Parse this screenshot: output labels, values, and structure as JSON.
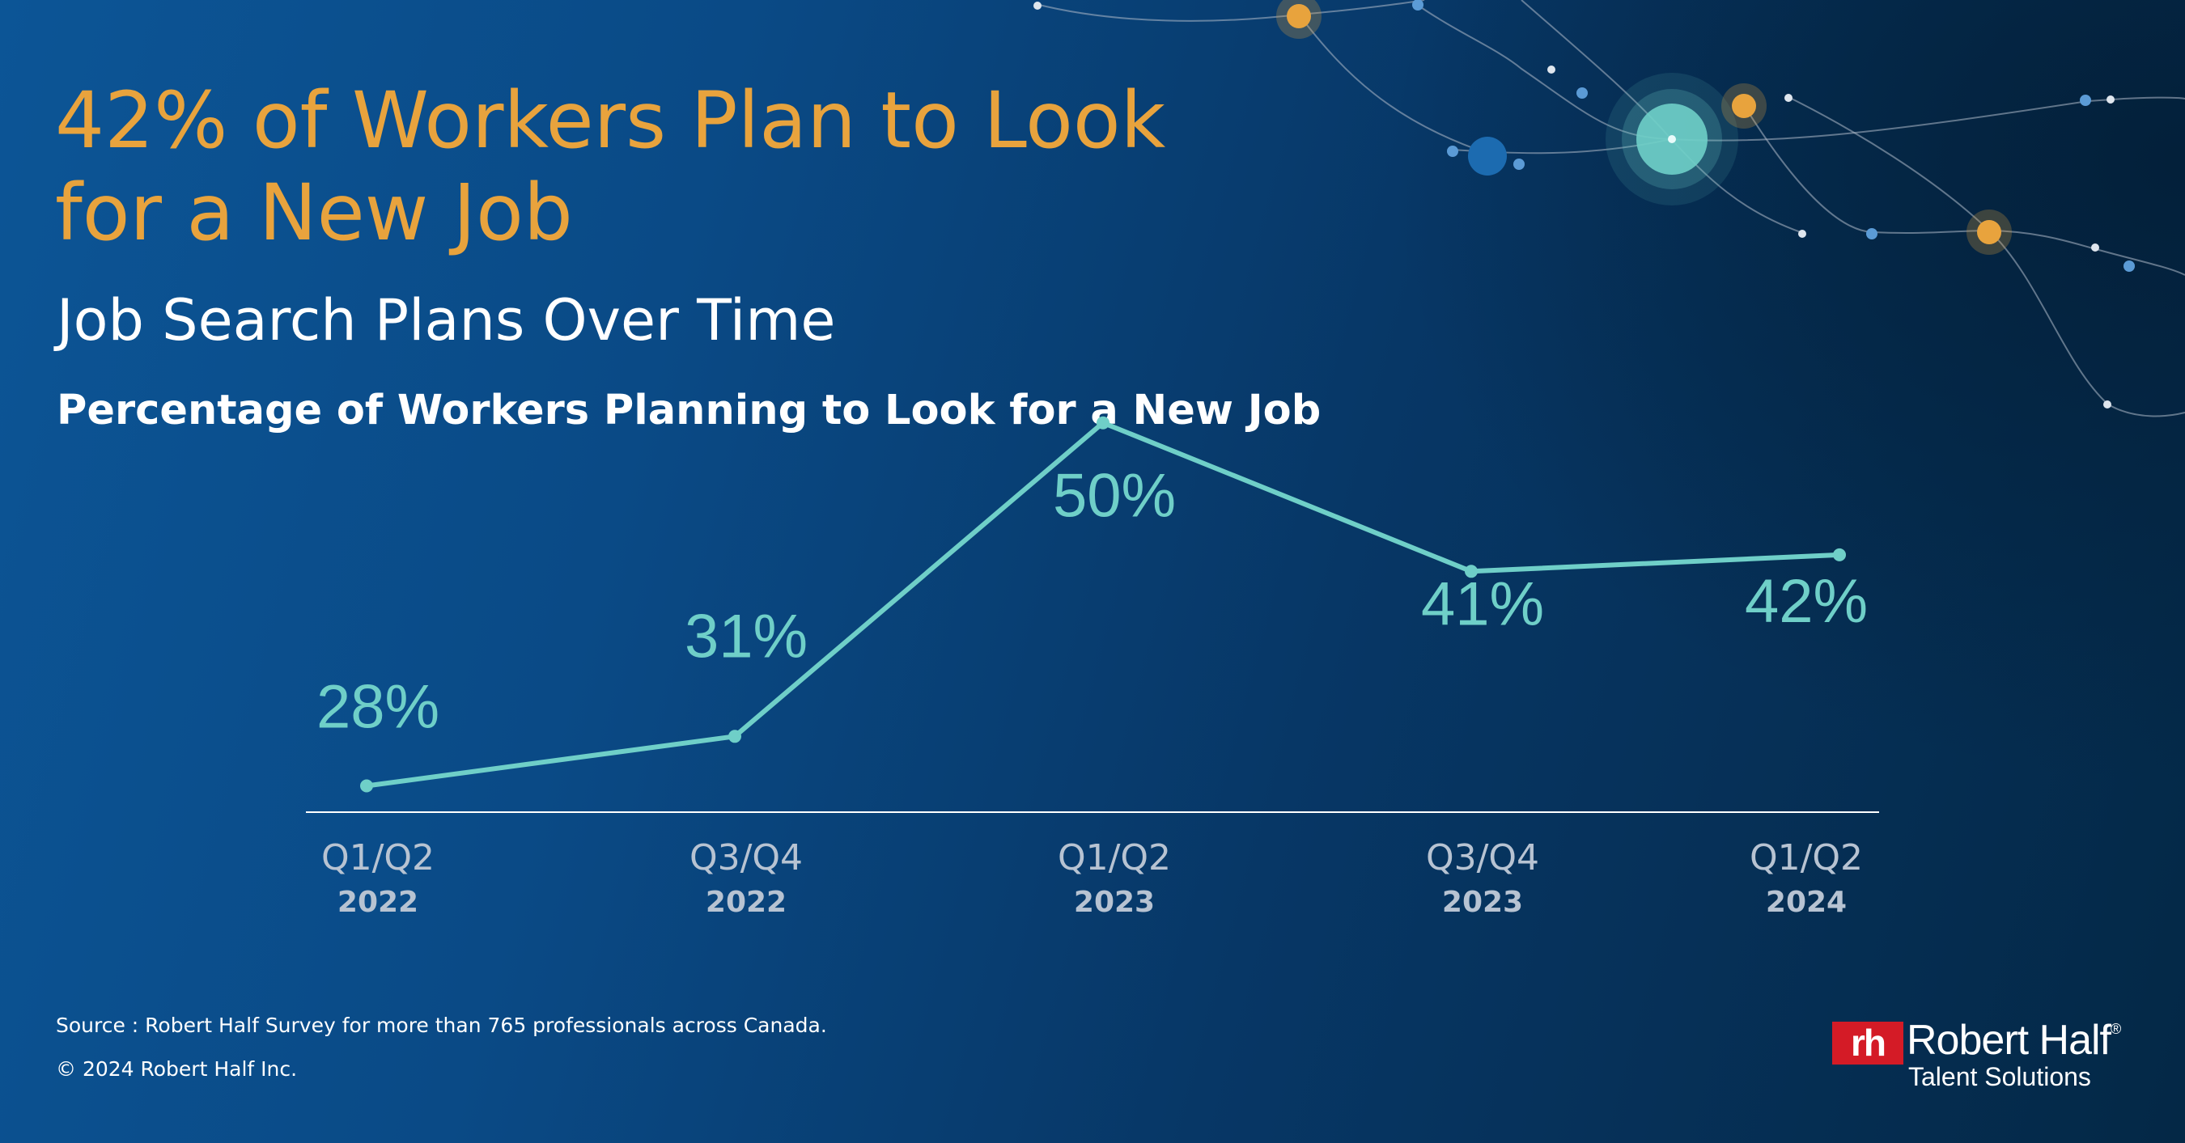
{
  "header": {
    "title": "42% of Workers Plan to Look for a New Job",
    "subtitle": "Job Search Plans Over Time",
    "chart_heading": "Percentage of Workers Planning to Look for a New Job"
  },
  "colors": {
    "title": "#e8a33d",
    "line": "#6fcfc8",
    "data_label": "#6fcfc8",
    "axis_label": "#b7c3d2",
    "baseline": "#ffffff",
    "logo_mark": "#d41b26"
  },
  "chart_data": {
    "type": "line",
    "title": "Percentage of Workers Planning to Look for a New Job",
    "categories": [
      "Q1/Q2 2022",
      "Q3/Q4 2022",
      "Q1/Q2 2023",
      "Q3/Q4 2023",
      "Q1/Q2 2024"
    ],
    "category_periods": [
      "Q1/Q2",
      "Q3/Q4",
      "Q1/Q2",
      "Q3/Q4",
      "Q1/Q2"
    ],
    "category_years": [
      "2022",
      "2022",
      "2023",
      "2023",
      "2024"
    ],
    "values": [
      28,
      31,
      50,
      41,
      42
    ],
    "value_labels": [
      "28%",
      "31%",
      "50%",
      "41%",
      "42%"
    ],
    "unit": "%",
    "xlabel": "",
    "ylabel": "",
    "grid": false,
    "legend": "none"
  },
  "footer": {
    "source": "Source : Robert Half Survey for more than 765 professionals across Canada.",
    "copyright": "© 2024 Robert Half Inc."
  },
  "logo": {
    "mark": "rh",
    "name": "Robert Half",
    "registered": "®",
    "tagline": "Talent Solutions"
  }
}
